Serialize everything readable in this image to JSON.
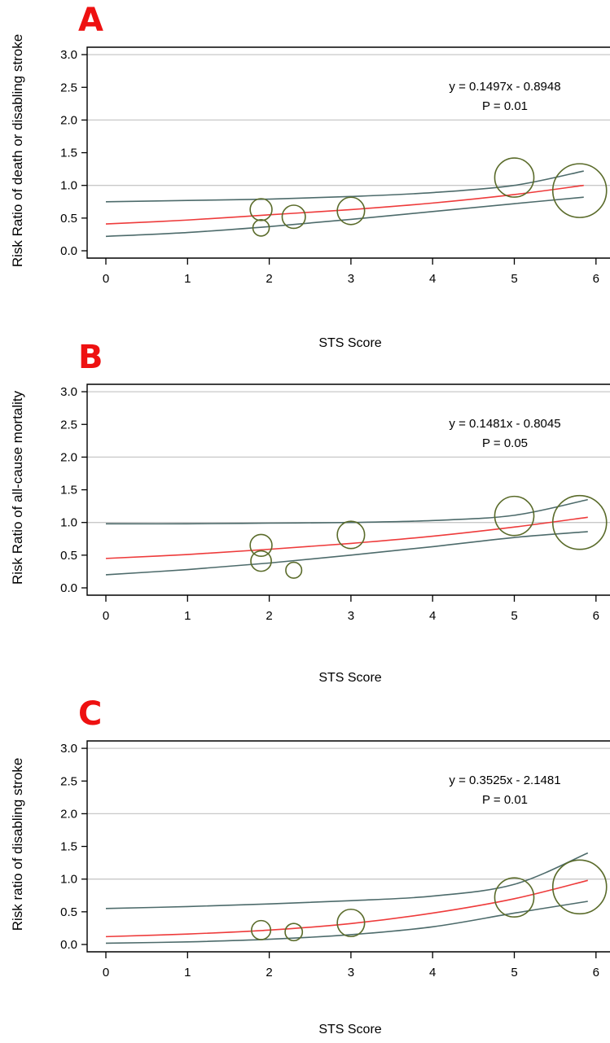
{
  "chart_data": [
    {
      "panel": "A",
      "type": "scatter",
      "ylabel": "Risk Ratio of  death or disabling stroke",
      "xlabel": "STS Score",
      "xlim": [
        0,
        6
      ],
      "ylim": [
        0,
        3
      ],
      "xticks": [
        "0",
        "1",
        "2",
        "3",
        "4",
        "5",
        "6"
      ],
      "yticks": [
        "0.0",
        "0.5",
        "1.0",
        "1.5",
        "2.0",
        "2.5",
        "3.0"
      ],
      "gridlines_y": [
        1.0,
        2.0,
        3.0
      ],
      "annotation": [
        "y = 0.1497x - 0.8948",
        "P = 0.01"
      ],
      "points": [
        {
          "x": 1.9,
          "y": 0.63,
          "size": 0.3
        },
        {
          "x": 1.9,
          "y": 0.35,
          "size": 0.18
        },
        {
          "x": 2.3,
          "y": 0.52,
          "size": 0.33
        },
        {
          "x": 3.0,
          "y": 0.61,
          "size": 0.42
        },
        {
          "x": 5.0,
          "y": 1.12,
          "size": 0.68
        },
        {
          "x": 5.8,
          "y": 0.92,
          "size": 1.0
        }
      ],
      "fit": {
        "x": [
          0,
          1,
          2,
          3,
          4,
          5,
          5.85
        ],
        "y": [
          0.41,
          0.47,
          0.55,
          0.63,
          0.73,
          0.86,
          1.0
        ]
      },
      "ci_upper": {
        "x": [
          0,
          1,
          2,
          3,
          4,
          5,
          5.85
        ],
        "y": [
          0.75,
          0.77,
          0.79,
          0.83,
          0.89,
          1.0,
          1.22
        ]
      },
      "ci_lower": {
        "x": [
          0,
          1,
          2,
          3,
          4,
          5,
          5.85
        ],
        "y": [
          0.22,
          0.28,
          0.37,
          0.48,
          0.6,
          0.72,
          0.82
        ]
      }
    },
    {
      "panel": "B",
      "type": "scatter",
      "ylabel": "Risk Ratio of all-cause mortality",
      "xlabel": "STS Score",
      "xlim": [
        0,
        6
      ],
      "ylim": [
        0,
        3
      ],
      "xticks": [
        "0",
        "1",
        "2",
        "3",
        "4",
        "5",
        "6"
      ],
      "yticks": [
        "0.0",
        "0.5",
        "1.0",
        "1.5",
        "2.0",
        "2.5",
        "3.0"
      ],
      "gridlines_y": [
        1.0,
        2.0,
        3.0
      ],
      "annotation": [
        "y = 0.1481x - 0.8045",
        "P = 0.05"
      ],
      "points": [
        {
          "x": 1.9,
          "y": 0.65,
          "size": 0.3
        },
        {
          "x": 1.9,
          "y": 0.41,
          "size": 0.27
        },
        {
          "x": 2.3,
          "y": 0.27,
          "size": 0.17
        },
        {
          "x": 3.0,
          "y": 0.81,
          "size": 0.42
        },
        {
          "x": 5.0,
          "y": 1.1,
          "size": 0.68
        },
        {
          "x": 5.8,
          "y": 1.0,
          "size": 1.0
        }
      ],
      "fit": {
        "x": [
          0,
          1,
          2,
          3,
          4,
          5,
          5.9
        ],
        "y": [
          0.45,
          0.51,
          0.59,
          0.68,
          0.79,
          0.93,
          1.08
        ]
      },
      "ci_upper": {
        "x": [
          0,
          1,
          2,
          3,
          4,
          5,
          5.9
        ],
        "y": [
          0.98,
          0.98,
          0.99,
          1.0,
          1.03,
          1.11,
          1.35
        ]
      },
      "ci_lower": {
        "x": [
          0,
          1,
          2,
          3,
          4,
          5,
          5.9
        ],
        "y": [
          0.2,
          0.28,
          0.38,
          0.5,
          0.63,
          0.77,
          0.86
        ]
      }
    },
    {
      "panel": "C",
      "type": "scatter",
      "ylabel": "Risk ratio of disabling stroke",
      "xlabel": "STS Score",
      "xlim": [
        0,
        6
      ],
      "ylim": [
        0,
        3
      ],
      "xticks": [
        "0",
        "1",
        "2",
        "3",
        "4",
        "5",
        "6"
      ],
      "yticks": [
        "0.0",
        "0.5",
        "1.0",
        "1.5",
        "2.0",
        "2.5",
        "3.0"
      ],
      "gridlines_y": [
        1.0,
        2.0,
        3.0
      ],
      "annotation": [
        "y = 0.3525x - 2.1481",
        "P = 0.01"
      ],
      "points": [
        {
          "x": 1.9,
          "y": 0.22,
          "size": 0.24
        },
        {
          "x": 2.3,
          "y": 0.19,
          "size": 0.2
        },
        {
          "x": 3.0,
          "y": 0.33,
          "size": 0.42
        },
        {
          "x": 5.0,
          "y": 0.72,
          "size": 0.68
        },
        {
          "x": 5.8,
          "y": 0.88,
          "size": 1.0
        }
      ],
      "fit": {
        "x": [
          0,
          1,
          2,
          3,
          4,
          5,
          5.9
        ],
        "y": [
          0.12,
          0.16,
          0.22,
          0.32,
          0.48,
          0.7,
          0.98
        ]
      },
      "ci_upper": {
        "x": [
          0,
          1,
          2,
          3,
          4,
          5,
          5.9
        ],
        "y": [
          0.55,
          0.58,
          0.62,
          0.67,
          0.74,
          0.92,
          1.4
        ]
      },
      "ci_lower": {
        "x": [
          0,
          1,
          2,
          3,
          4,
          5,
          5.9
        ],
        "y": [
          0.02,
          0.04,
          0.08,
          0.15,
          0.27,
          0.48,
          0.66
        ]
      }
    }
  ],
  "colors": {
    "fit": "#ee3b3b",
    "ci": "#4d6b6b",
    "marker": "#5a6b2a",
    "grid": "#c8c8c8",
    "panel_letter": "#ee1111"
  }
}
